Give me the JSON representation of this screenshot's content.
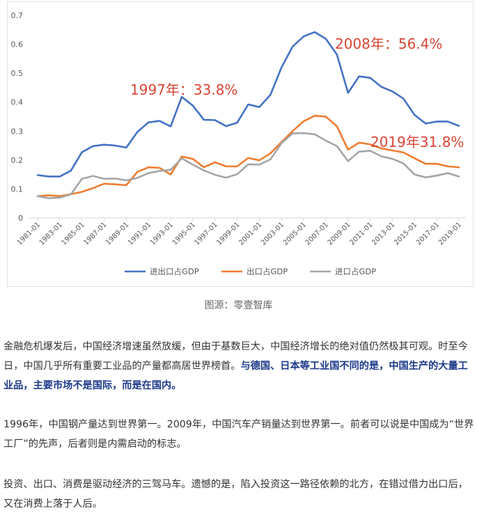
{
  "chart_data": {
    "type": "line",
    "x": [
      "1981-01",
      "1982-01",
      "1983-01",
      "1984-01",
      "1985-01",
      "1986-01",
      "1987-01",
      "1988-01",
      "1989-01",
      "1990-01",
      "1991-01",
      "1992-01",
      "1993-01",
      "1994-01",
      "1995-01",
      "1996-01",
      "1997-01",
      "1998-01",
      "1999-01",
      "2000-01",
      "2001-01",
      "2002-01",
      "2003-01",
      "2004-01",
      "2005-01",
      "2006-01",
      "2007-01",
      "2008-01",
      "2009-01",
      "2010-01",
      "2011-01",
      "2012-01",
      "2013-01",
      "2014-01",
      "2015-01",
      "2016-01",
      "2017-01",
      "2018-01",
      "2019-01"
    ],
    "x_tick_labels": [
      "1981-01",
      "1983-01",
      "1985-01",
      "1987-01",
      "1989-01",
      "1991-01",
      "1993-01",
      "1995-01",
      "1997-01",
      "1999-01",
      "2001-01",
      "2003-01",
      "2005-01",
      "2007-01",
      "2009-01",
      "2011-01",
      "2013-01",
      "2015-01",
      "2017-01",
      "2019-01"
    ],
    "y_ticks": [
      "0",
      "0.1",
      "0.2",
      "0.3",
      "0.4",
      "0.5",
      "0.6",
      "0.7"
    ],
    "ylim": [
      0,
      0.7
    ],
    "grid": false,
    "legend_position": "bottom",
    "series": [
      {
        "name": "进出口占GDP",
        "color": "#4472c4",
        "values": [
          0.148,
          0.143,
          0.143,
          0.163,
          0.227,
          0.248,
          0.253,
          0.25,
          0.243,
          0.297,
          0.33,
          0.335,
          0.316,
          0.418,
          0.388,
          0.339,
          0.338,
          0.317,
          0.329,
          0.392,
          0.383,
          0.425,
          0.52,
          0.592,
          0.627,
          0.642,
          0.619,
          0.564,
          0.432,
          0.489,
          0.484,
          0.453,
          0.437,
          0.412,
          0.356,
          0.326,
          0.333,
          0.333,
          0.318
        ]
      },
      {
        "name": "出口占GDP",
        "color": "#ed7d31",
        "values": [
          0.075,
          0.078,
          0.075,
          0.082,
          0.09,
          0.103,
          0.118,
          0.116,
          0.113,
          0.159,
          0.175,
          0.173,
          0.15,
          0.212,
          0.204,
          0.175,
          0.192,
          0.178,
          0.178,
          0.207,
          0.199,
          0.223,
          0.262,
          0.3,
          0.334,
          0.353,
          0.35,
          0.316,
          0.236,
          0.26,
          0.254,
          0.24,
          0.233,
          0.226,
          0.206,
          0.187,
          0.187,
          0.178,
          0.175
        ]
      },
      {
        "name": "进口占GDP",
        "color": "#a5a5a5",
        "values": [
          0.075,
          0.068,
          0.07,
          0.081,
          0.135,
          0.145,
          0.135,
          0.136,
          0.13,
          0.138,
          0.155,
          0.162,
          0.166,
          0.206,
          0.184,
          0.164,
          0.149,
          0.139,
          0.151,
          0.185,
          0.184,
          0.202,
          0.258,
          0.292,
          0.293,
          0.289,
          0.267,
          0.248,
          0.196,
          0.229,
          0.232,
          0.213,
          0.204,
          0.188,
          0.15,
          0.14,
          0.146,
          0.155,
          0.143
        ]
      }
    ],
    "annotations": [
      {
        "text": "1997年：33.8%",
        "x": "1997-01",
        "y": 0.338,
        "color": "#d94535"
      },
      {
        "text": "2008年：56.4%",
        "x": "2008-01",
        "y": 0.564,
        "color": "#d94535"
      },
      {
        "text": "2019年31.8%",
        "x": "2019-01",
        "y": 0.318,
        "color": "#d94535"
      }
    ]
  },
  "caption": "图源：零壹智库",
  "paragraphs": {
    "p1_text": "金融危机爆发后，中国经济增速虽然放缓，但由于基数巨大，中国经济增长的绝对值仍然极其可观。时至今日，中国几乎所有重要工业品的产量都高居世界榜首。",
    "p1_bold": "与德国、日本等工业国不同的是，中国生产的大量工业品，主要市场不是国际，而是在国内。",
    "p2": "1996年，中国钢产量达到世界第一。2009年，中国汽车产销量达到世界第一。前者可以说是中国成为“世界工厂”的先声，后者则是内需启动的标志。",
    "p3": "投资、出口、消费是驱动经济的三驾马车。遗憾的是，陷入投资这一路径依赖的北方，在错过借力出口后，又在消费上落于人后。"
  }
}
